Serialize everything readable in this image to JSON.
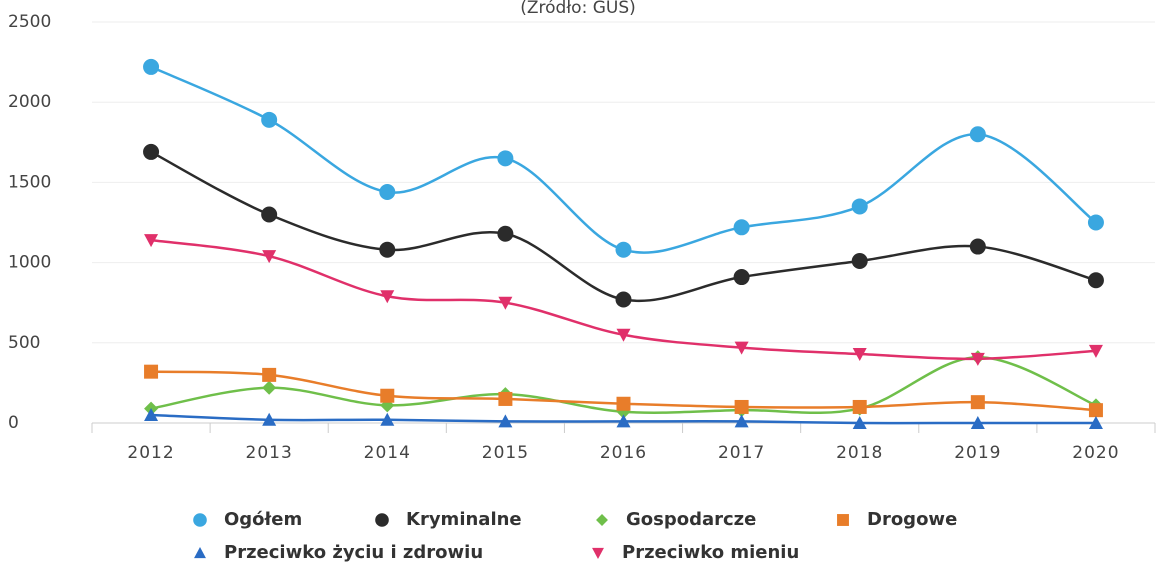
{
  "chart_data": {
    "type": "line",
    "subtitle": "(Źródło: GUS)",
    "categories": [
      "2012",
      "2013",
      "2014",
      "2015",
      "2016",
      "2017",
      "2018",
      "2019",
      "2020"
    ],
    "series": [
      {
        "name": "Ogółem",
        "color": "#3aa7e0",
        "marker": "circle",
        "values": [
          2220,
          1890,
          1440,
          1650,
          1080,
          1220,
          1350,
          1800,
          1250
        ]
      },
      {
        "name": "Kryminalne",
        "color": "#2b2b2b",
        "marker": "circle",
        "values": [
          1690,
          1300,
          1080,
          1180,
          770,
          910,
          1010,
          1100,
          890
        ]
      },
      {
        "name": "Gospodarcze",
        "color": "#6fbf4a",
        "marker": "diamond",
        "values": [
          90,
          220,
          110,
          180,
          70,
          80,
          90,
          410,
          110
        ]
      },
      {
        "name": "Drogowe",
        "color": "#e87d2a",
        "marker": "square",
        "values": [
          320,
          300,
          170,
          150,
          120,
          100,
          100,
          130,
          80
        ]
      },
      {
        "name": "Przeciwko życiu i zdrowiu",
        "color": "#2a6cc4",
        "marker": "triangle",
        "values": [
          50,
          20,
          20,
          10,
          10,
          10,
          0,
          0,
          0
        ]
      },
      {
        "name": "Przeciwko mieniu",
        "color": "#e0306a",
        "marker": "triangle-down",
        "values": [
          1140,
          1040,
          790,
          750,
          550,
          470,
          430,
          400,
          450
        ]
      }
    ],
    "ylim": [
      0,
      2500
    ],
    "yticks": [
      0,
      500,
      1000,
      1500,
      2000,
      2500
    ],
    "grid": true,
    "legend": "bottom"
  }
}
